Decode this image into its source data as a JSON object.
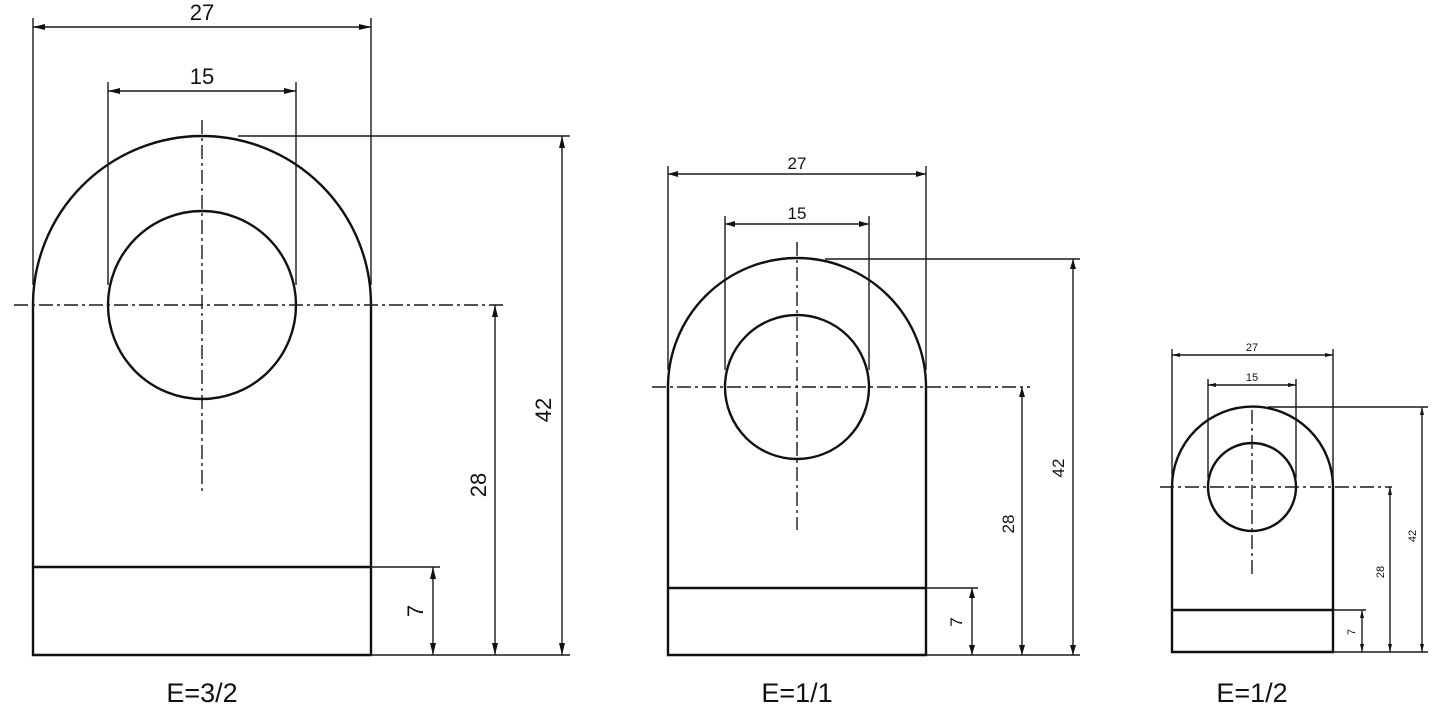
{
  "drawings": [
    {
      "caption": "E=3/2",
      "dims": {
        "overall_width": "27",
        "hole_diameter": "15",
        "total_height": "42",
        "center_height": "28",
        "base_height": "7"
      }
    },
    {
      "caption": "E=1/1",
      "dims": {
        "overall_width": "27",
        "hole_diameter": "15",
        "total_height": "42",
        "center_height": "28",
        "base_height": "7"
      }
    },
    {
      "caption": "E=1/2",
      "dims": {
        "overall_width": "27",
        "hole_diameter": "15",
        "total_height": "42",
        "center_height": "28",
        "base_height": "7"
      }
    }
  ],
  "colors": {
    "line": "#111111",
    "background": "#ffffff"
  }
}
